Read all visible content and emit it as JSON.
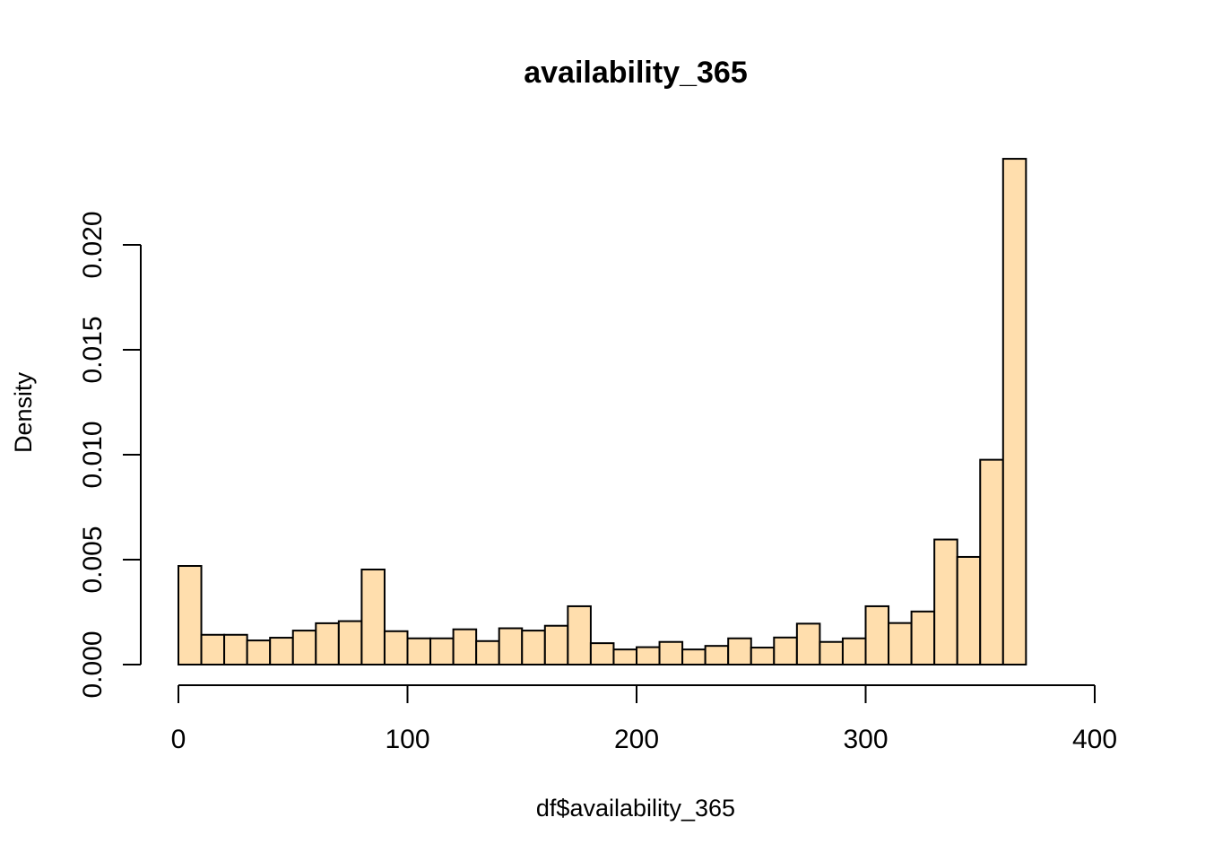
{
  "chart_data": {
    "type": "bar",
    "title": "availability_365",
    "xlabel": "df$availability_365",
    "ylabel": "Density",
    "xlim": [
      0,
      400
    ],
    "ylim": [
      0,
      0.024
    ],
    "x_ticks": [
      0,
      100,
      200,
      300,
      400
    ],
    "x_tick_labels": [
      "0",
      "100",
      "200",
      "300",
      "400"
    ],
    "y_ticks": [
      0,
      0.005,
      0.01,
      0.015,
      0.02
    ],
    "y_tick_labels": [
      "0.000",
      "0.005",
      "0.010",
      "0.015",
      "0.020"
    ],
    "bin_width": 10,
    "bins_start": [
      0,
      10,
      20,
      30,
      40,
      50,
      60,
      70,
      80,
      90,
      100,
      110,
      120,
      130,
      140,
      150,
      160,
      170,
      180,
      190,
      200,
      210,
      220,
      230,
      240,
      250,
      260,
      270,
      280,
      290,
      300,
      310,
      320,
      330,
      340,
      350,
      360
    ],
    "values": [
      0.0047,
      0.00142,
      0.00142,
      0.00115,
      0.00128,
      0.00162,
      0.00197,
      0.00207,
      0.00453,
      0.00159,
      0.00125,
      0.00125,
      0.00168,
      0.00112,
      0.00173,
      0.00162,
      0.00185,
      0.00278,
      0.00102,
      0.00072,
      0.00083,
      0.00108,
      0.00072,
      0.00089,
      0.00125,
      0.00081,
      0.00129,
      0.00195,
      0.00108,
      0.00125,
      0.00278,
      0.00198,
      0.00253,
      0.00596,
      0.00513,
      0.00976,
      0.0241
    ],
    "colors": {
      "bar_fill": "#FFDEAD",
      "bar_stroke": "#000000",
      "axis": "#000000",
      "background": "#FFFFFF"
    },
    "grid": false,
    "legend": "none"
  }
}
